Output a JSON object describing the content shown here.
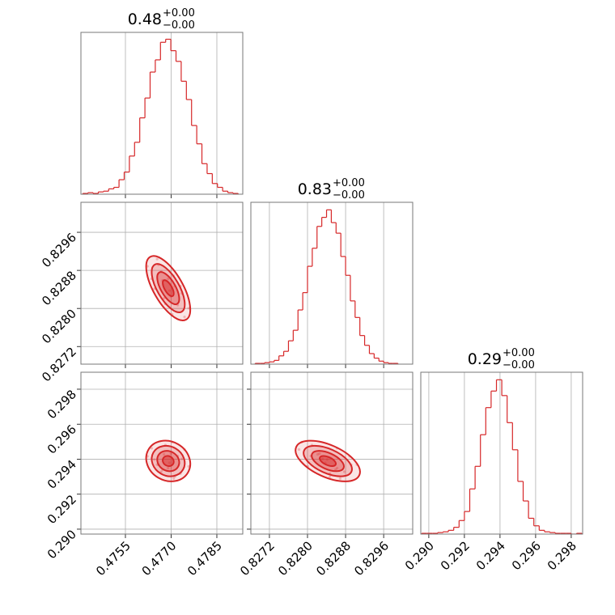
{
  "chart_data": [
    {
      "type": "histogram",
      "title": "0.48",
      "title_sup": "+0.00",
      "title_sub": "−0.00",
      "color": "#d62728",
      "grid": true,
      "bins": [
        0.4741,
        0.47427,
        0.47444,
        0.47461,
        0.47478,
        0.47495,
        0.47512,
        0.47529,
        0.47546,
        0.47563,
        0.4758,
        0.47597,
        0.47614,
        0.47631,
        0.47648,
        0.47665,
        0.47682,
        0.47699,
        0.47716,
        0.47733,
        0.4775,
        0.47767,
        0.47784,
        0.47801,
        0.47818,
        0.47835,
        0.47852,
        0.47869,
        0.47886,
        0.47903,
        0.4792
      ],
      "counts": [
        1,
        2,
        1,
        3,
        4,
        7,
        9,
        19,
        29,
        50,
        68,
        100,
        126,
        160,
        176,
        199,
        203,
        188,
        174,
        148,
        124,
        90,
        66,
        40,
        27,
        14,
        9,
        4,
        2,
        1
      ],
      "xlim": [
        0.47404,
        0.47935
      ],
      "ylim": [
        0,
        212
      ],
      "xticks": [
        0.4755,
        {
          "value": 0.477,
          "label": "0.4770"
        },
        0.4785
      ]
    },
    {
      "type": "scatter",
      "color": "#d62728",
      "grid": true,
      "x": [
        0.476225,
        0.47645,
        0.476585,
        0.47672,
        0.47681,
        0.4769,
        0.47699,
        0.47708,
        0.477215,
        0.47735,
        0.477575,
        0.47636,
        0.477305,
        0.476765,
        0.477125,
        0.47654,
        0.47744,
        0.476945,
        0.476675,
        0.477035
      ],
      "y": [
        0.828886,
        0.828414,
        0.828918,
        0.82859,
        0.828094,
        0.828622,
        0.828254,
        0.828686,
        0.82807,
        0.828318,
        0.828006,
        0.828622,
        0.82847,
        0.828214,
        0.82847,
        0.829038,
        0.827822,
        0.828374,
        0.828774,
        0.827878
      ],
      "xlim": [
        0.47404,
        0.47935
      ],
      "ylim": [
        0.82683,
        0.83023
      ],
      "xticks": [
        0.4755,
        {
          "value": 0.477,
          "label": "0.4770"
        },
        0.4785
      ],
      "yticks": [
        0.8272,
        {
          "value": 0.828,
          "label": "0.8280"
        },
        0.8288,
        0.8296
      ]
    },
    {
      "type": "histogram",
      "title": "0.83",
      "title_sup": "+0.00",
      "title_sub": "−0.00",
      "color": "#d62728",
      "grid": true,
      "bins": [
        0.8269,
        0.827,
        0.8271,
        0.8272,
        0.8273,
        0.8274,
        0.8275,
        0.8276,
        0.8277,
        0.8278,
        0.8279,
        0.828,
        0.8281,
        0.8282,
        0.8283,
        0.8284,
        0.8285,
        0.8286,
        0.8287,
        0.8288,
        0.8289,
        0.829,
        0.8291,
        0.8292,
        0.8293,
        0.8294,
        0.8295,
        0.8296,
        0.8297,
        0.8298,
        0.8299
      ],
      "counts": [
        1,
        1,
        2,
        3,
        5,
        11,
        17,
        31,
        45,
        72,
        95,
        130,
        154,
        183,
        195,
        205,
        188,
        174,
        143,
        118,
        84,
        62,
        38,
        25,
        14,
        8,
        4,
        2,
        1,
        1
      ],
      "xlim": [
        0.82681,
        0.83021
      ],
      "ylim": [
        0,
        215
      ],
      "xticks": [
        0.8272,
        {
          "value": 0.828,
          "label": "0.8280"
        },
        0.8288,
        0.8296
      ]
    },
    {
      "type": "scatter",
      "color": "#d62728",
      "grid": true,
      "x": [
        0.476225,
        0.47645,
        0.476585,
        0.47672,
        0.47681,
        0.4769,
        0.47699,
        0.47708,
        0.477215,
        0.47735,
        0.477575,
        0.47636,
        0.477305,
        0.476765,
        0.477125,
        0.47654,
        0.47744,
        0.476945,
        0.476675,
        0.477035
      ],
      "y": [
        0.294167,
        0.293978,
        0.293681,
        0.293402,
        0.294806,
        0.293492,
        0.29432,
        0.292898,
        0.294185,
        0.294014,
        0.293591,
        0.294626,
        0.293177,
        0.294275,
        0.292997,
        0.29369,
        0.294554,
        0.293789,
        0.293285,
        0.294977
      ],
      "xlim": [
        0.47404,
        0.47935
      ],
      "ylim": [
        0.28972,
        0.29897
      ],
      "xticks": [
        0.4755,
        {
          "value": 0.477,
          "label": "0.4770"
        },
        0.4785
      ],
      "yticks": [
        {
          "value": 0.29,
          "label": "0.290"
        },
        0.292,
        0.294,
        0.296,
        0.298
      ]
    },
    {
      "type": "scatter",
      "color": "#d62728",
      "grid": true,
      "x": [
        0.828886,
        0.828414,
        0.828918,
        0.82859,
        0.828094,
        0.828622,
        0.828254,
        0.828686,
        0.82807,
        0.828318,
        0.828006,
        0.828622,
        0.82847,
        0.828214,
        0.82847,
        0.829038,
        0.827822,
        0.828374,
        0.828774,
        0.827878
      ],
      "y": [
        0.294167,
        0.293978,
        0.293681,
        0.293402,
        0.294806,
        0.293492,
        0.29432,
        0.292898,
        0.294185,
        0.294014,
        0.293591,
        0.294626,
        0.293177,
        0.294275,
        0.292997,
        0.29369,
        0.294554,
        0.293789,
        0.293285,
        0.294977
      ],
      "xlim": [
        0.82681,
        0.83021
      ],
      "ylim": [
        0.28972,
        0.29897
      ],
      "xticks": [
        0.8272,
        {
          "value": 0.828,
          "label": "0.8280"
        },
        0.8288,
        0.8296
      ],
      "yticks": [
        {
          "value": 0.29,
          "label": "0.290"
        },
        0.292,
        0.294,
        0.296,
        0.298
      ]
    },
    {
      "type": "histogram",
      "title": "0.29",
      "title_sup": "+0.00",
      "title_sub": "−0.00",
      "color": "#d62728",
      "grid": true,
      "bins": [
        0.2896,
        0.2899,
        0.2902,
        0.2905,
        0.2908,
        0.2911,
        0.2914,
        0.2917,
        0.292,
        0.2923,
        0.2926,
        0.2929,
        0.2932,
        0.2935,
        0.2938,
        0.2941,
        0.2944,
        0.2947,
        0.295,
        0.2953,
        0.2956,
        0.2959,
        0.2962,
        0.2965,
        0.2968,
        0.2971,
        0.2974,
        0.2977,
        0.298,
        0.2983,
        0.2986
      ],
      "counts": [
        1,
        1,
        1,
        2,
        3,
        5,
        9,
        18,
        30,
        60,
        90,
        132,
        168,
        190,
        205,
        184,
        148,
        112,
        70,
        44,
        21,
        11,
        5,
        3,
        2,
        1,
        1,
        1,
        0,
        1
      ],
      "xlim": [
        0.28955,
        0.29864
      ],
      "ylim": [
        0,
        215
      ],
      "xticks": [
        {
          "value": 0.29,
          "label": "0.290"
        },
        0.292,
        0.294,
        0.296,
        0.298
      ]
    }
  ]
}
